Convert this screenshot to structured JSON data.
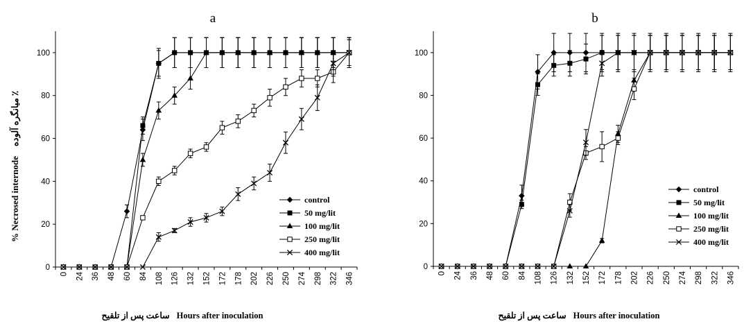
{
  "figure": {
    "background": "#ffffff",
    "ink": "#000000"
  },
  "chart_data": [
    {
      "type": "line",
      "title": "a",
      "xlabel": "Hours after inoculation",
      "xlabel_fa": "ساعت پس از تلقیح",
      "ylabel": "% Necrosed internode",
      "ylabel_fa": "٪ میانگره آلوده",
      "categories": [
        "0",
        "24",
        "36",
        "48",
        "60",
        "84",
        "108",
        "126",
        "132",
        "152",
        "172",
        "178",
        "202",
        "226",
        "250",
        "274",
        "298",
        "322",
        "346"
      ],
      "ylim": [
        0,
        110
      ],
      "yticks": [
        0,
        20,
        40,
        60,
        80,
        100
      ],
      "grid": false,
      "error_bars": true,
      "legend_position": "bottom-right",
      "series": [
        {
          "name": "control",
          "marker": "diamond",
          "color": "#000000",
          "values": [
            0,
            0,
            0,
            0,
            26,
            64,
            95,
            100,
            100,
            100,
            100,
            100,
            100,
            100,
            100,
            100,
            100,
            100,
            100
          ],
          "errors": [
            0,
            0,
            0,
            0,
            3,
            5,
            7,
            7,
            7,
            7,
            7,
            7,
            7,
            7,
            7,
            7,
            7,
            7,
            7
          ]
        },
        {
          "name": "50 mg/lit",
          "marker": "square",
          "color": "#000000",
          "values": [
            0,
            0,
            0,
            0,
            0,
            66,
            95,
            100,
            100,
            100,
            100,
            100,
            100,
            100,
            100,
            100,
            100,
            100,
            100
          ],
          "errors": [
            0,
            0,
            0,
            0,
            0,
            4,
            6,
            7,
            7,
            7,
            7,
            7,
            7,
            7,
            7,
            7,
            7,
            7,
            7
          ]
        },
        {
          "name": "100 mg/lit",
          "marker": "triangle",
          "color": "#000000",
          "values": [
            0,
            0,
            0,
            0,
            0,
            50,
            73,
            80,
            88,
            100,
            100,
            100,
            100,
            100,
            100,
            100,
            100,
            100,
            100
          ],
          "errors": [
            0,
            0,
            0,
            0,
            0,
            3,
            4,
            4,
            5,
            7,
            7,
            7,
            7,
            7,
            7,
            7,
            7,
            7,
            7
          ]
        },
        {
          "name": "250 mg/lit",
          "marker": "open-square",
          "color": "#000000",
          "values": [
            0,
            0,
            0,
            0,
            0,
            23,
            40,
            45,
            53,
            56,
            65,
            68,
            73,
            79,
            84,
            88,
            88,
            91,
            100
          ],
          "errors": [
            0,
            0,
            0,
            0,
            0,
            1,
            2,
            2,
            2,
            2,
            3,
            3,
            3,
            4,
            4,
            4,
            4,
            5,
            6
          ]
        },
        {
          "name": "400 mg/lit",
          "marker": "x",
          "color": "#000000",
          "values": [
            0,
            0,
            0,
            0,
            0,
            0,
            14,
            17,
            21,
            23,
            26,
            34,
            39,
            44,
            58,
            69,
            79,
            95,
            100
          ],
          "errors": [
            0,
            0,
            0,
            0,
            0,
            0,
            2,
            1,
            2,
            2,
            2,
            3,
            3,
            4,
            5,
            5,
            6,
            6,
            6
          ]
        }
      ]
    },
    {
      "type": "line",
      "title": "b",
      "xlabel": "Hours after inoculation",
      "xlabel_fa": "ساعت پس از تلقیح",
      "categories": [
        "0",
        "24",
        "36",
        "48",
        "60",
        "84",
        "108",
        "126",
        "132",
        "152",
        "172",
        "178",
        "202",
        "226",
        "250",
        "274",
        "298",
        "322",
        "346"
      ],
      "ylim": [
        0,
        110
      ],
      "yticks": [
        0,
        20,
        40,
        60,
        80,
        100
      ],
      "grid": false,
      "error_bars": true,
      "legend_position": "bottom-right",
      "series": [
        {
          "name": "control",
          "marker": "diamond",
          "color": "#000000",
          "values": [
            0,
            0,
            0,
            0,
            0,
            33,
            91,
            100,
            100,
            100,
            100,
            100,
            100,
            100,
            100,
            100,
            100,
            100,
            100
          ],
          "errors": [
            0,
            0,
            0,
            0,
            0,
            5,
            8,
            9,
            9,
            9,
            9,
            9,
            9,
            9,
            9,
            9,
            9,
            9,
            9
          ]
        },
        {
          "name": "50 mg/lit",
          "marker": "square",
          "color": "#000000",
          "values": [
            0,
            0,
            0,
            0,
            0,
            29,
            85,
            94,
            95,
            97,
            100,
            100,
            100,
            100,
            100,
            100,
            100,
            100,
            100
          ],
          "errors": [
            0,
            0,
            0,
            0,
            0,
            2,
            5,
            5,
            6,
            7,
            8,
            8,
            8,
            8,
            8,
            8,
            8,
            8,
            8
          ]
        },
        {
          "name": "100 mg/lit",
          "marker": "triangle",
          "color": "#000000",
          "values": [
            0,
            0,
            0,
            0,
            0,
            0,
            0,
            0,
            0,
            0,
            12,
            62,
            87,
            100,
            100,
            100,
            100,
            100,
            100
          ],
          "errors": [
            0,
            0,
            0,
            0,
            0,
            0,
            0,
            0,
            0,
            0,
            1,
            4,
            4,
            8,
            8,
            8,
            8,
            8,
            8
          ]
        },
        {
          "name": "250 mg/lit",
          "marker": "open-square",
          "color": "#000000",
          "values": [
            0,
            0,
            0,
            0,
            0,
            0,
            0,
            0,
            30,
            53,
            56,
            60,
            83,
            100,
            100,
            100,
            100,
            100,
            100
          ],
          "errors": [
            0,
            0,
            0,
            0,
            0,
            0,
            0,
            0,
            4,
            3,
            7,
            3,
            5,
            8,
            8,
            8,
            8,
            8,
            8
          ]
        },
        {
          "name": "400 mg/lit",
          "marker": "x",
          "color": "#000000",
          "values": [
            0,
            0,
            0,
            0,
            0,
            0,
            0,
            0,
            26,
            58,
            95,
            100,
            100,
            100,
            100,
            100,
            100,
            100,
            100
          ],
          "errors": [
            0,
            0,
            0,
            0,
            0,
            0,
            0,
            0,
            3,
            6,
            6,
            8,
            8,
            8,
            8,
            8,
            8,
            8,
            8
          ]
        }
      ]
    }
  ]
}
